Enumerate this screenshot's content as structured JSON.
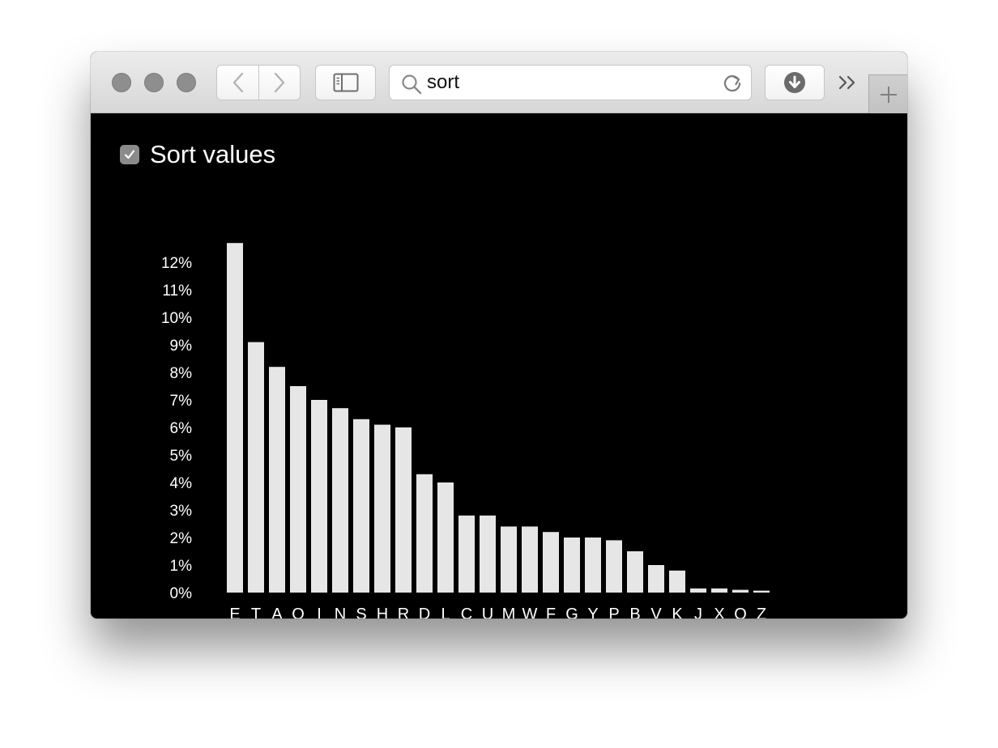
{
  "toolbar": {
    "address_value": "sort",
    "icons": {
      "back": "chevron-left-icon",
      "forward": "chevron-right-icon",
      "sidebar": "sidebar-icon",
      "search": "search-icon",
      "reload": "reload-icon",
      "downloads": "download-icon",
      "more": "double-chevron-icon",
      "new_tab": "plus-icon"
    }
  },
  "page": {
    "sort_label": "Sort values",
    "sort_checked": true
  },
  "chart_data": {
    "type": "bar",
    "title": "",
    "xlabel": "",
    "ylabel": "",
    "categories": [
      "E",
      "T",
      "A",
      "O",
      "I",
      "N",
      "S",
      "H",
      "R",
      "D",
      "L",
      "C",
      "U",
      "M",
      "W",
      "F",
      "G",
      "Y",
      "P",
      "B",
      "V",
      "K",
      "J",
      "X",
      "Q",
      "Z"
    ],
    "values": [
      12.7,
      9.1,
      8.2,
      7.5,
      7.0,
      6.7,
      6.3,
      6.1,
      6.0,
      4.3,
      4.0,
      2.8,
      2.8,
      2.4,
      2.4,
      2.2,
      2.0,
      2.0,
      1.9,
      1.5,
      1.0,
      0.8,
      0.15,
      0.15,
      0.1,
      0.07
    ],
    "ylim": [
      0,
      12.7
    ],
    "yticks": [
      "0%",
      "1%",
      "2%",
      "3%",
      "4%",
      "5%",
      "6%",
      "7%",
      "8%",
      "9%",
      "10%",
      "11%",
      "12%"
    ],
    "grid": false,
    "colors": {
      "bar": "#e6e6e6",
      "text": "#ffffff",
      "background": "#000000"
    }
  }
}
